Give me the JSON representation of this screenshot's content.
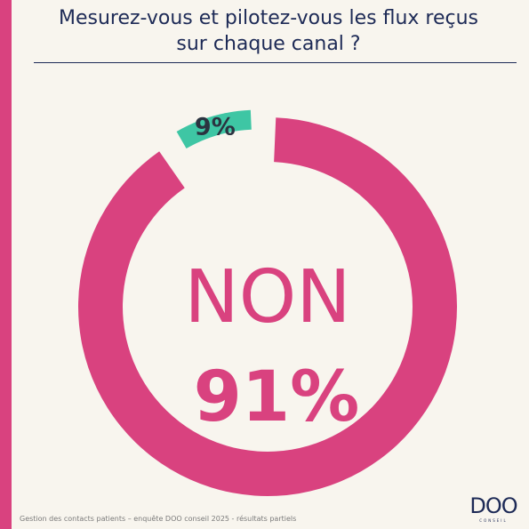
{
  "header": {
    "title_line1": "Mesurez-vous et pilotez-vous les flux reçus",
    "title_line2": "sur chaque canal ?"
  },
  "chart_data": {
    "type": "pie",
    "style": "donut",
    "slices": [
      {
        "label": "NON",
        "value": 91,
        "value_label": "91%",
        "color": "#d9427f",
        "exploded": false
      },
      {
        "label": "",
        "value": 9,
        "value_label": "9%",
        "color": "#3ec6a4",
        "exploded": true
      }
    ],
    "center_label": "NON",
    "center_value": "91%",
    "start": "top",
    "direction": "clockwise"
  },
  "footer": {
    "caption": "Gestion des contacts patients – enquête DOO conseil 2025 - résultats partiels"
  },
  "logo": {
    "word": "DOO",
    "sub": "CONSEIL"
  },
  "colors": {
    "accent": "#d9427f",
    "secondary": "#3ec6a4",
    "text_dark": "#1d2a56",
    "background": "#f8f5ee"
  }
}
